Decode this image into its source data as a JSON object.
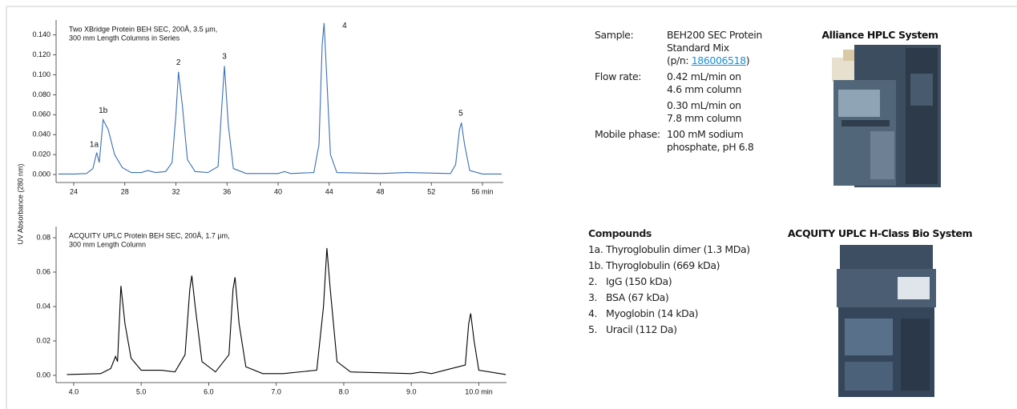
{
  "shared_y_label": "UV Absorbance (280 nm)",
  "chart_data": [
    {
      "type": "line",
      "title_lines": [
        "Two XBridge Protein BEH SEC, 200Å, 3.5 µm,",
        "300 mm Length Columns in Series"
      ],
      "x": [
        22.8,
        24,
        25,
        25.5,
        25.8,
        26.0,
        26.3,
        26.7,
        27.2,
        27.8,
        28.5,
        29.3,
        29.8,
        30.4,
        31.2,
        31.7,
        32.0,
        32.2,
        32.5,
        32.9,
        33.5,
        34.5,
        35.3,
        35.6,
        35.8,
        36.1,
        36.5,
        37.5,
        40.0,
        40.5,
        41.0,
        42.8,
        43.2,
        43.45,
        43.6,
        43.8,
        44.1,
        44.6,
        48,
        50,
        53.5,
        53.9,
        54.2,
        54.35,
        54.6,
        55,
        56,
        57.5
      ],
      "series": [
        {
          "color": "#3a6fb5",
          "values": [
            0.0005,
            0.0005,
            0.001,
            0.006,
            0.022,
            0.012,
            0.055,
            0.045,
            0.02,
            0.007,
            0.002,
            0.002,
            0.004,
            0.002,
            0.003,
            0.012,
            0.06,
            0.103,
            0.07,
            0.015,
            0.003,
            0.002,
            0.008,
            0.07,
            0.109,
            0.05,
            0.006,
            0.001,
            0.001,
            0.003,
            0.001,
            0.002,
            0.03,
            0.13,
            0.152,
            0.1,
            0.02,
            0.002,
            0.001,
            0.002,
            0.001,
            0.01,
            0.045,
            0.052,
            0.03,
            0.004,
            0.0005,
            0.0005
          ]
        }
      ],
      "xlim": [
        22.62,
        57.63
      ],
      "xticks": [
        24,
        28,
        32,
        36,
        40,
        44,
        48,
        52,
        {
          "value": 56,
          "label": "56 min"
        }
      ],
      "ylim": [
        -0.008,
        0.155
      ],
      "yticks": [
        {
          "value": 0,
          "label": "0.000"
        },
        {
          "value": 0.02,
          "label": "0.020"
        },
        {
          "value": 0.04,
          "label": "0.040"
        },
        {
          "value": 0.06,
          "label": "0.060"
        },
        {
          "value": 0.08,
          "label": "0.080"
        },
        {
          "value": 0.1,
          "label": "0.100"
        },
        {
          "value": 0.12,
          "label": "0.120"
        },
        {
          "value": 0.14,
          "label": "0.140"
        }
      ],
      "annotations": [
        {
          "text": "1a",
          "x": 25.6,
          "y": 0.03
        },
        {
          "text": "1b",
          "x": 26.3,
          "y": 0.064
        },
        {
          "text": "2",
          "x": 32.2,
          "y": 0.112
        },
        {
          "text": "3",
          "x": 35.8,
          "y": 0.118
        },
        {
          "text": "4",
          "x": 45.2,
          "y": 0.149
        },
        {
          "text": "5",
          "x": 54.3,
          "y": 0.061
        }
      ]
    },
    {
      "type": "line",
      "title_lines": [
        "ACQUITY UPLC Protein BEH SEC, 200Å, 1.7 µm,",
        "300 mm Length Column"
      ],
      "x": [
        3.9,
        4.4,
        4.55,
        4.62,
        4.65,
        4.7,
        4.76,
        4.85,
        5.0,
        5.3,
        5.5,
        5.65,
        5.72,
        5.75,
        5.8,
        5.9,
        6.1,
        6.3,
        6.36,
        6.39,
        6.45,
        6.55,
        6.8,
        7.1,
        7.6,
        7.7,
        7.75,
        7.8,
        7.9,
        8.1,
        9.0,
        9.15,
        9.3,
        9.8,
        9.85,
        9.88,
        9.93,
        10.0,
        10.4
      ],
      "series": [
        {
          "color": "#000000",
          "values": [
            0.0005,
            0.001,
            0.004,
            0.011,
            0.008,
            0.052,
            0.03,
            0.01,
            0.003,
            0.003,
            0.002,
            0.012,
            0.05,
            0.058,
            0.04,
            0.008,
            0.002,
            0.012,
            0.05,
            0.057,
            0.03,
            0.005,
            0.001,
            0.001,
            0.003,
            0.04,
            0.074,
            0.05,
            0.008,
            0.002,
            0.001,
            0.002,
            0.001,
            0.006,
            0.03,
            0.036,
            0.02,
            0.003,
            0.0005
          ]
        }
      ],
      "xlim": [
        3.74,
        10.41
      ],
      "xticks": [
        {
          "value": 4,
          "label": "4.0"
        },
        {
          "value": 5,
          "label": "5.0"
        },
        {
          "value": 6,
          "label": "6.0"
        },
        {
          "value": 7,
          "label": "7.0"
        },
        {
          "value": 8,
          "label": "8.0"
        },
        {
          "value": 9,
          "label": "9.0"
        },
        {
          "value": 10,
          "label": "10.0 min"
        }
      ],
      "ylim": [
        -0.0042,
        0.0865
      ],
      "yticks": [
        {
          "value": 0,
          "label": "0.00"
        },
        {
          "value": 0.02,
          "label": "0.02"
        },
        {
          "value": 0.04,
          "label": "0.04"
        },
        {
          "value": 0.06,
          "label": "0.06"
        },
        {
          "value": 0.08,
          "label": "0.08"
        }
      ]
    }
  ],
  "conditions": [
    {
      "label": "Sample:",
      "lines": [
        "BEH200 SEC Protein",
        "Standard Mix"
      ],
      "part_number": {
        "prefix": "(p/n: ",
        "link": "186006518",
        "suffix": ")"
      }
    },
    {
      "label": "Flow rate:",
      "lines": [
        "0.42 mL/min on",
        "4.6 mm column",
        "0.30 mL/min on",
        "7.8 mm column"
      ]
    },
    {
      "label": "Mobile phase:",
      "lines": [
        "100 mM sodium",
        "phosphate, pH 6.8"
      ]
    }
  ],
  "compounds": {
    "title": "Compounds",
    "items": [
      {
        "number": "1a.",
        "name": "Thyroglobulin dimer (1.3 MDa)"
      },
      {
        "number": "1b.",
        "name": "Thyroglobulin (669 kDa)"
      },
      {
        "number": "2.",
        "name": "IgG (150 kDa)"
      },
      {
        "number": "3.",
        "name": "BSA (67 kDa)"
      },
      {
        "number": "4.",
        "name": "Myoglobin (14 kDa)"
      },
      {
        "number": "5.",
        "name": "Uracil (112 Da)"
      }
    ]
  },
  "systems": [
    "Alliance HPLC System",
    "ACQUITY UPLC H-Class Bio System"
  ]
}
